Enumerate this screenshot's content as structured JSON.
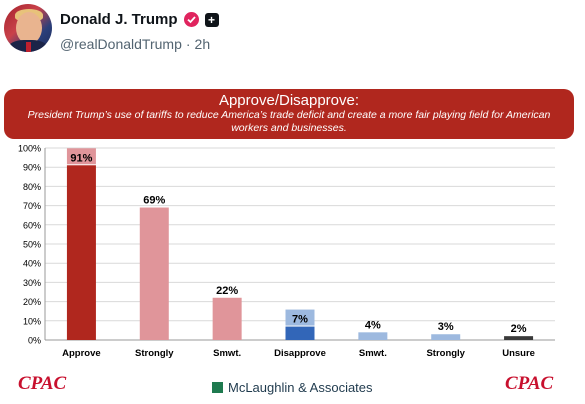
{
  "post": {
    "author_name": "Donald J. Trump",
    "handle": "@realDonaldTrump",
    "separator": "·",
    "time_ago": "2h",
    "plus_icon": "+"
  },
  "chart_banner": {
    "title": "Approve/Disapprove:",
    "subtitle": "President Trump’s use of tariffs to reduce America’s trade deficit and create a more fair playing field for American workers and businesses."
  },
  "footer": {
    "left_logo": "CPAC",
    "center_text": "McLaughlin & Associates",
    "right_logo": "CPAC"
  },
  "colors": {
    "banner": "#b0271e",
    "approve": "#b0271e",
    "approve_light": "#e0959a",
    "disapprove": "#3266b8",
    "disapprove_light": "#9db9df",
    "unsure": "#3a3a3a"
  },
  "chart_data": {
    "type": "bar",
    "categories": [
      "Approve",
      "Strongly",
      "Smwt.",
      "Disapprove",
      "Smwt.",
      "Strongly",
      "Unsure"
    ],
    "values": [
      91,
      69,
      22,
      7,
      4,
      3,
      2
    ],
    "labels": [
      "91%",
      "69%",
      "22%",
      "7%",
      "4%",
      "3%",
      "2%"
    ],
    "bar_colors": [
      "#b0271e",
      "#e0959a",
      "#e0959a",
      "#3266b8",
      "#9db9df",
      "#9db9df",
      "#3a3a3a"
    ],
    "label_boxed": [
      true,
      false,
      false,
      true,
      false,
      false,
      false
    ],
    "ylim": [
      0,
      100
    ],
    "yticks": [
      "0%",
      "10%",
      "20%",
      "30%",
      "40%",
      "50%",
      "60%",
      "70%",
      "80%",
      "90%",
      "100%"
    ],
    "grid": true
  }
}
